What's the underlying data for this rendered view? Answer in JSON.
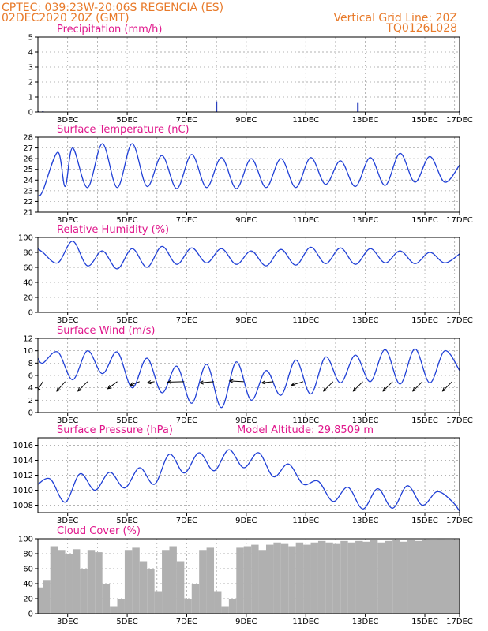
{
  "header": {
    "line1_left": "CPTEC:   039:23W-20:06S   REGENCIA (ES)",
    "line2_left": "02DEC2020 20Z (GMT)",
    "line2_right": "Vertical Grid Line: 20Z",
    "line3_right": "TQ0126L028"
  },
  "colors": {
    "line": "#1f3fd6",
    "title": "#e0188c",
    "header": "#e87a2a",
    "cloud": "#b0b0b0"
  },
  "x_ticks": [
    "3DEC",
    "5DEC",
    "7DEC",
    "9DEC",
    "11DEC",
    "13DEC",
    "15DEC",
    "17DEC"
  ],
  "chart_data": [
    {
      "type": "bar",
      "title": "Precipitation (mm/h)",
      "ylim": [
        0,
        5
      ],
      "yticks": [
        0,
        1,
        2,
        3,
        4,
        5
      ],
      "grid": true,
      "x": [
        "02DEC20Z",
        "03DEC00Z",
        "08DEC20Z",
        "13DEC14Z",
        "17DEC00Z"
      ],
      "values": [
        0.05,
        0.05,
        0.7,
        0.65,
        0.05
      ]
    },
    {
      "type": "line",
      "title": "Surface Temperature (nC)",
      "ylim": [
        21,
        28
      ],
      "yticks": [
        21,
        22,
        23,
        24,
        25,
        26,
        27,
        28
      ],
      "grid": true,
      "x": [
        "02DEC20Z",
        "03DEC00Z",
        "03DEC12Z",
        "03DEC18Z",
        "04DEC00Z",
        "04DEC12Z",
        "05DEC00Z",
        "05DEC12Z",
        "06DEC00Z",
        "06DEC12Z",
        "07DEC00Z",
        "07DEC12Z",
        "08DEC00Z",
        "08DEC12Z",
        "09DEC00Z",
        "09DEC12Z",
        "10DEC00Z",
        "10DEC12Z",
        "11DEC00Z",
        "11DEC12Z",
        "12DEC00Z",
        "12DEC12Z",
        "13DEC00Z",
        "13DEC12Z",
        "14DEC00Z",
        "14DEC12Z",
        "15DEC00Z",
        "15DEC12Z",
        "16DEC00Z",
        "16DEC12Z",
        "17DEC00Z"
      ],
      "values": [
        22.5,
        23.0,
        26.6,
        23.4,
        27.0,
        23.3,
        27.4,
        23.3,
        27.4,
        23.4,
        26.3,
        23.2,
        26.4,
        23.3,
        26.1,
        23.2,
        26.0,
        23.3,
        26.0,
        23.3,
        26.1,
        23.6,
        25.8,
        23.4,
        26.1,
        23.5,
        26.5,
        23.8,
        26.2,
        23.8,
        25.4
      ]
    },
    {
      "type": "line",
      "title": "Relative Humidity (%)",
      "ylim": [
        0,
        100
      ],
      "yticks": [
        0,
        20,
        40,
        60,
        80,
        100
      ],
      "grid": true,
      "x": [
        "02DEC20Z",
        "03DEC00Z",
        "03DEC12Z",
        "04DEC00Z",
        "04DEC12Z",
        "05DEC00Z",
        "05DEC12Z",
        "06DEC00Z",
        "06DEC12Z",
        "07DEC00Z",
        "07DEC12Z",
        "08DEC00Z",
        "08DEC12Z",
        "09DEC00Z",
        "09DEC12Z",
        "10DEC00Z",
        "10DEC12Z",
        "11DEC00Z",
        "11DEC12Z",
        "12DEC00Z",
        "12DEC12Z",
        "13DEC00Z",
        "13DEC12Z",
        "14DEC00Z",
        "14DEC12Z",
        "15DEC00Z",
        "15DEC12Z",
        "16DEC00Z",
        "16DEC12Z",
        "17DEC00Z"
      ],
      "values": [
        85,
        80,
        66,
        95,
        62,
        82,
        58,
        85,
        60,
        88,
        64,
        86,
        66,
        85,
        64,
        82,
        62,
        84,
        63,
        87,
        65,
        86,
        64,
        85,
        66,
        82,
        65,
        80,
        66,
        78
      ]
    },
    {
      "type": "line",
      "title": "Surface Wind (m/s)",
      "ylim": [
        0,
        12
      ],
      "yticks": [
        0,
        2,
        4,
        6,
        8,
        10,
        12
      ],
      "grid": true,
      "x": [
        "02DEC20Z",
        "03DEC00Z",
        "03DEC12Z",
        "04DEC00Z",
        "04DEC12Z",
        "05DEC00Z",
        "05DEC12Z",
        "06DEC00Z",
        "06DEC12Z",
        "07DEC00Z",
        "07DEC12Z",
        "08DEC00Z",
        "08DEC12Z",
        "09DEC00Z",
        "09DEC12Z",
        "10DEC00Z",
        "10DEC12Z",
        "11DEC00Z",
        "11DEC12Z",
        "12DEC00Z",
        "12DEC12Z",
        "13DEC00Z",
        "13DEC12Z",
        "14DEC00Z",
        "14DEC12Z",
        "15DEC00Z",
        "15DEC12Z",
        "16DEC00Z",
        "16DEC12Z",
        "17DEC00Z"
      ],
      "values": [
        8.8,
        8.0,
        9.8,
        5.3,
        10.0,
        6.3,
        9.8,
        4.0,
        8.8,
        3.2,
        7.5,
        1.5,
        7.8,
        0.8,
        8.2,
        2.0,
        6.8,
        2.8,
        8.5,
        3.0,
        9.0,
        4.8,
        9.3,
        5.0,
        10.2,
        4.6,
        10.3,
        4.8,
        10.0,
        6.8
      ],
      "wind_arrows": [
        {
          "x": "03DEC00Z",
          "u": -2.5,
          "v": -4
        },
        {
          "x": "03DEC18Z",
          "u": -3.5,
          "v": -4
        },
        {
          "x": "04DEC12Z",
          "u": -4,
          "v": -4
        },
        {
          "x": "05DEC12Z",
          "u": -4,
          "v": -3
        },
        {
          "x": "06DEC06Z",
          "u": -4,
          "v": -1.5
        },
        {
          "x": "06DEC18Z",
          "u": -3,
          "v": -0.5
        },
        {
          "x": "07DEC18Z",
          "u": -7,
          "v": -0.2
        },
        {
          "x": "08DEC18Z",
          "u": -6,
          "v": -0.5
        },
        {
          "x": "09DEC18Z",
          "u": -6,
          "v": 0.3
        },
        {
          "x": "10DEC18Z",
          "u": -5,
          "v": -0.5
        },
        {
          "x": "11DEC18Z",
          "u": -5,
          "v": -1.5
        },
        {
          "x": "12DEC18Z",
          "u": -4,
          "v": -4
        },
        {
          "x": "13DEC18Z",
          "u": -4,
          "v": -4
        },
        {
          "x": "14DEC18Z",
          "u": -4,
          "v": -4
        },
        {
          "x": "15DEC18Z",
          "u": -4,
          "v": -4
        },
        {
          "x": "16DEC18Z",
          "u": -4,
          "v": -4
        }
      ]
    },
    {
      "type": "line",
      "title": "Surface Pressure (hPa)",
      "annotation": "Model Altitude: 29.8509 m",
      "ylim": [
        1007,
        1017
      ],
      "yticks": [
        1008,
        1010,
        1012,
        1014,
        1016
      ],
      "grid": true,
      "x": [
        "02DEC20Z",
        "03DEC06Z",
        "03DEC18Z",
        "04DEC06Z",
        "04DEC18Z",
        "05DEC06Z",
        "05DEC18Z",
        "06DEC06Z",
        "06DEC18Z",
        "07DEC06Z",
        "07DEC18Z",
        "08DEC06Z",
        "08DEC18Z",
        "09DEC06Z",
        "09DEC18Z",
        "10DEC06Z",
        "10DEC18Z",
        "11DEC06Z",
        "11DEC18Z",
        "12DEC06Z",
        "12DEC18Z",
        "13DEC06Z",
        "13DEC18Z",
        "14DEC06Z",
        "14DEC18Z",
        "15DEC06Z",
        "15DEC18Z",
        "16DEC06Z",
        "16DEC18Z",
        "17DEC00Z"
      ],
      "values": [
        1010.8,
        1011.5,
        1008.4,
        1012.2,
        1010.0,
        1012.4,
        1010.3,
        1013.0,
        1010.8,
        1014.8,
        1012.3,
        1015.0,
        1012.6,
        1015.4,
        1013.0,
        1015.0,
        1011.8,
        1013.5,
        1010.8,
        1011.2,
        1008.5,
        1010.4,
        1007.5,
        1010.2,
        1007.6,
        1010.6,
        1008.0,
        1009.8,
        1008.5,
        1007.2
      ]
    },
    {
      "type": "bar",
      "title": "Cloud Cover (%)",
      "ylim": [
        0,
        100
      ],
      "yticks": [
        0,
        20,
        40,
        60,
        80,
        100
      ],
      "grid": true,
      "x": [
        "02DEC20Z",
        "03DEC00Z",
        "03DEC06Z",
        "03DEC12Z",
        "03DEC18Z",
        "04DEC00Z",
        "04DEC06Z",
        "04DEC12Z",
        "04DEC18Z",
        "05DEC00Z",
        "05DEC06Z",
        "05DEC12Z",
        "05DEC18Z",
        "06DEC00Z",
        "06DEC06Z",
        "06DEC12Z",
        "06DEC18Z",
        "07DEC00Z",
        "07DEC06Z",
        "07DEC12Z",
        "07DEC18Z",
        "08DEC00Z",
        "08DEC06Z",
        "08DEC12Z",
        "08DEC18Z",
        "09DEC00Z",
        "09DEC06Z",
        "09DEC12Z",
        "09DEC18Z",
        "10DEC00Z",
        "10DEC06Z",
        "10DEC12Z",
        "10DEC18Z",
        "11DEC00Z",
        "11DEC06Z",
        "11DEC12Z",
        "11DEC18Z",
        "12DEC00Z",
        "12DEC06Z",
        "12DEC12Z",
        "12DEC18Z",
        "13DEC00Z",
        "13DEC06Z",
        "13DEC12Z",
        "13DEC18Z",
        "14DEC00Z",
        "14DEC06Z",
        "14DEC12Z",
        "14DEC18Z",
        "15DEC00Z",
        "15DEC06Z",
        "15DEC12Z",
        "15DEC18Z",
        "16DEC00Z",
        "16DEC06Z",
        "16DEC12Z",
        "16DEC18Z",
        "17DEC00Z"
      ],
      "values": [
        35,
        45,
        90,
        85,
        80,
        86,
        60,
        85,
        82,
        40,
        10,
        20,
        85,
        88,
        70,
        60,
        30,
        85,
        90,
        70,
        20,
        40,
        85,
        88,
        30,
        10,
        20,
        88,
        90,
        92,
        85,
        92,
        95,
        93,
        90,
        95,
        92,
        95,
        97,
        95,
        93,
        97,
        95,
        97,
        96,
        98,
        95,
        97,
        98,
        96,
        98,
        97,
        99,
        98,
        99,
        98,
        99,
        99
      ]
    }
  ]
}
